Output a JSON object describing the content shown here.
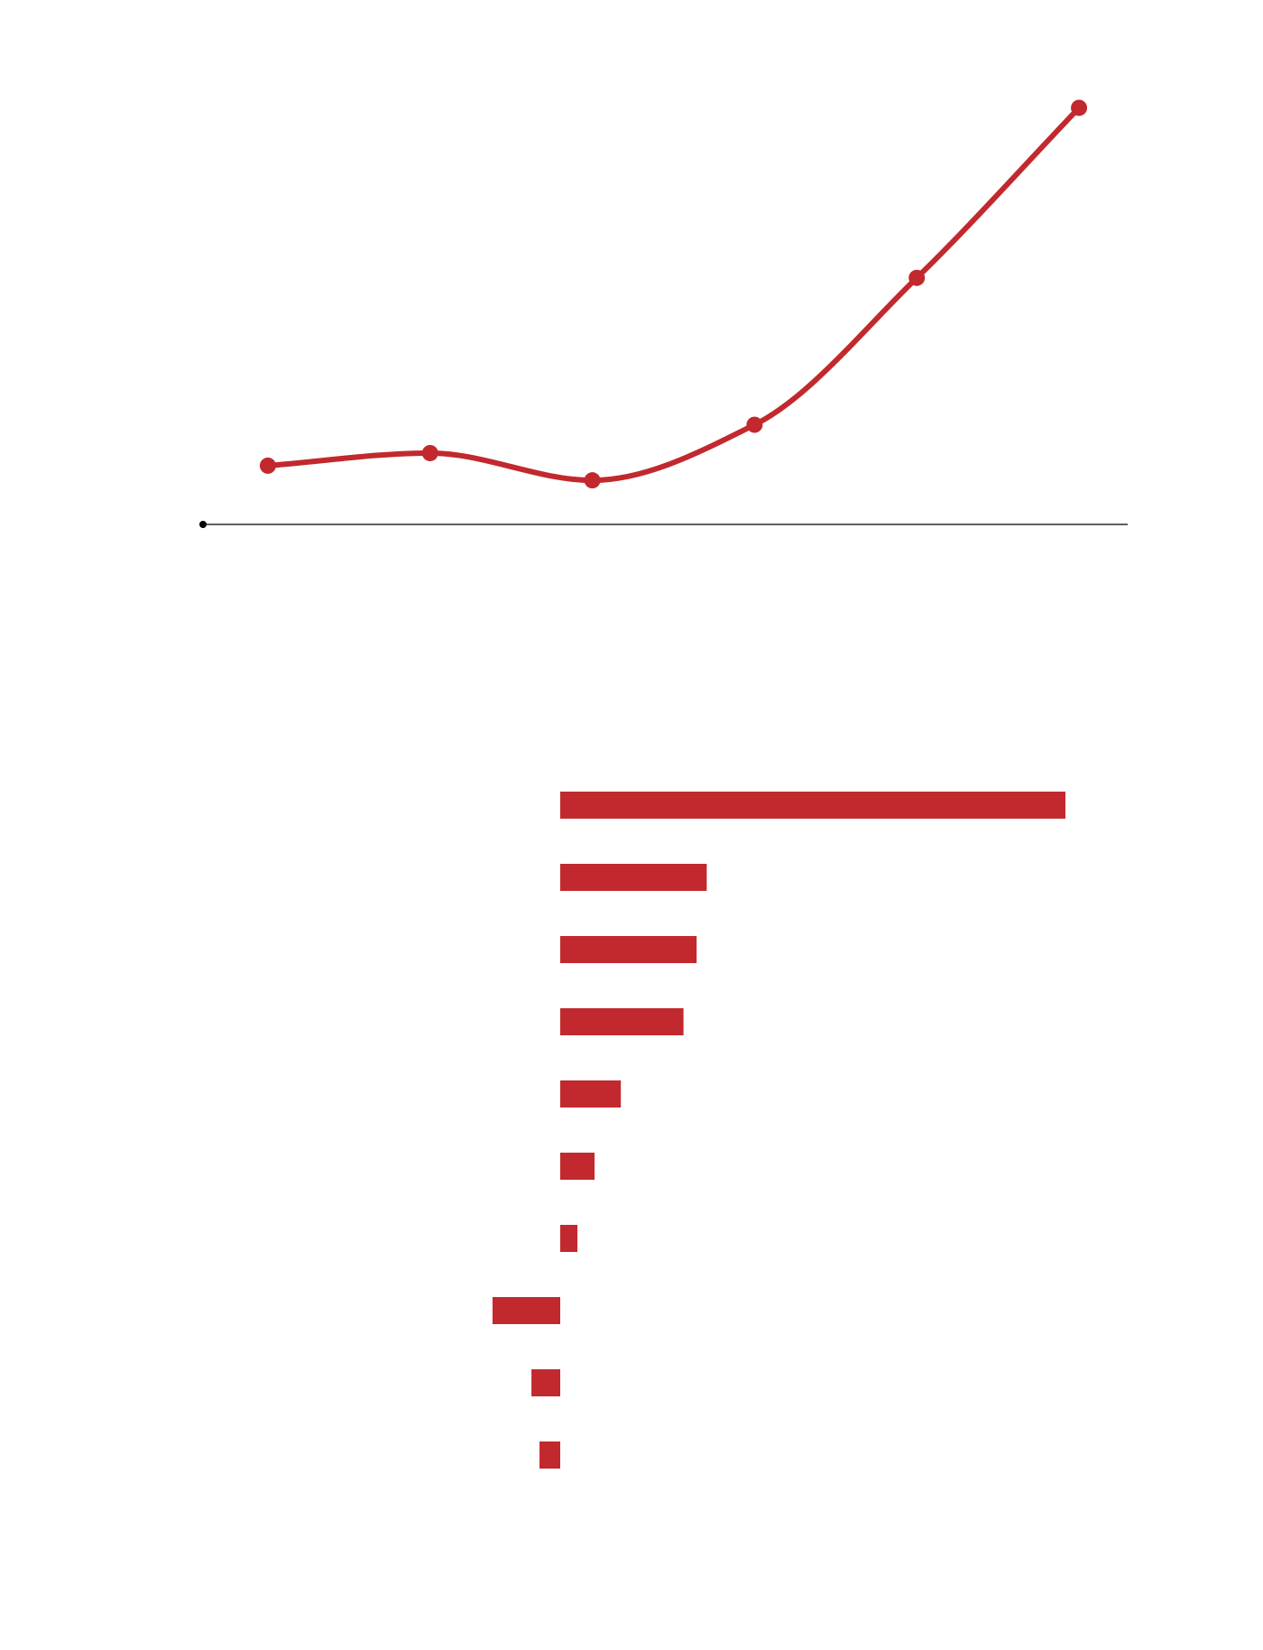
{
  "colors": {
    "accent": "#c1292e",
    "axis": "#000000",
    "background": "#ffffff"
  },
  "chart_data": [
    {
      "type": "line",
      "smooth": true,
      "markers": true,
      "x": [
        1,
        2,
        3,
        4,
        5,
        6
      ],
      "series": [
        {
          "values": [
            5.6,
            6.8,
            4.2,
            9.5,
            23.5,
            39.7
          ]
        }
      ],
      "xlim": [
        0.6,
        6.3
      ],
      "ylim": [
        0,
        40
      ],
      "baseline": 0,
      "grid": false,
      "legend": "none"
    },
    {
      "type": "bar",
      "orientation": "horizontal",
      "values": [
        100,
        29,
        27,
        24.4,
        12,
        6.8,
        3.4,
        -13.4,
        -5.7,
        -4.1
      ],
      "xlim": [
        -25,
        100
      ],
      "grid": false,
      "legend": "none"
    }
  ]
}
